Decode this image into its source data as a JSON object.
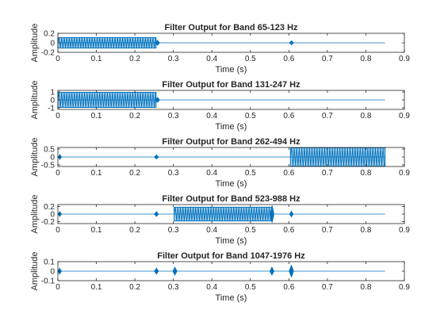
{
  "colors": {
    "series": "#0072BD",
    "axes": "#262626",
    "background": "#ffffff"
  },
  "chart_data": [
    {
      "type": "line",
      "title": "Filter Output for Band 65-123 Hz",
      "xlabel": "Time (s)",
      "ylabel": "Amplitude",
      "xlim": [
        0,
        0.9
      ],
      "ylim": [
        -0.2,
        0.2
      ],
      "xticks": [
        0,
        0.1,
        0.2,
        0.3,
        0.4,
        0.5,
        0.6,
        0.7,
        0.8,
        0.9
      ],
      "xtick_labels": [
        "0",
        "0.1",
        "0.2",
        "0.3",
        "0.4",
        "0.5",
        "0.6",
        "0.7",
        "0.8",
        "0.9"
      ],
      "yticks": [
        -0.2,
        0,
        0.2
      ],
      "ytick_labels": [
        "-0.2",
        "0",
        "0.2"
      ],
      "signal_end": 0.85,
      "segments": [
        {
          "x": [
            0.0,
            0.255
          ],
          "amplitude": 0.11
        },
        {
          "x": [
            0.255,
            0.262
          ],
          "amplitude": 0.05
        },
        {
          "x": [
            0.604,
            0.61
          ],
          "amplitude": 0.04
        }
      ]
    },
    {
      "type": "line",
      "title": "Filter Output for Band 131-247 Hz",
      "xlabel": "Time (s)",
      "ylabel": "Amplitude",
      "xlim": [
        0,
        0.9
      ],
      "ylim": [
        -1.2,
        1.2
      ],
      "xticks": [
        0,
        0.1,
        0.2,
        0.3,
        0.4,
        0.5,
        0.6,
        0.7,
        0.8,
        0.9
      ],
      "xtick_labels": [
        "0",
        "0.1",
        "0.2",
        "0.3",
        "0.4",
        "0.5",
        "0.6",
        "0.7",
        "0.8",
        "0.9"
      ],
      "yticks": [
        -1,
        0,
        1
      ],
      "ytick_labels": [
        "-1",
        "0",
        "1"
      ],
      "signal_end": 0.85,
      "segments": [
        {
          "x": [
            0.0,
            0.255
          ],
          "amplitude": 0.95
        },
        {
          "x": [
            0.255,
            0.262
          ],
          "amplitude": 0.3
        }
      ]
    },
    {
      "type": "line",
      "title": "Filter Output for Band 262-494 Hz",
      "xlabel": "Time (s)",
      "ylabel": "Amplitude",
      "xlim": [
        0,
        0.9
      ],
      "ylim": [
        -0.6,
        0.6
      ],
      "xticks": [
        0,
        0.1,
        0.2,
        0.3,
        0.4,
        0.5,
        0.6,
        0.7,
        0.8,
        0.9
      ],
      "xtick_labels": [
        "0",
        "0.1",
        "0.2",
        "0.3",
        "0.4",
        "0.5",
        "0.6",
        "0.7",
        "0.8",
        "0.9"
      ],
      "yticks": [
        -0.5,
        0,
        0.5
      ],
      "ytick_labels": [
        "-0.5",
        "0",
        "0.5"
      ],
      "signal_end": 0.85,
      "segments": [
        {
          "x": [
            0.003,
            0.007
          ],
          "amplitude": 0.15
        },
        {
          "x": [
            0.253,
            0.259
          ],
          "amplitude": 0.12
        },
        {
          "x": [
            0.604,
            0.85
          ],
          "amplitude": 0.58
        }
      ]
    },
    {
      "type": "line",
      "title": "Filter Output for Band 523-988 Hz",
      "xlabel": "Time (s)",
      "ylabel": "Amplitude",
      "xlim": [
        0,
        0.9
      ],
      "ylim": [
        -0.25,
        0.25
      ],
      "xticks": [
        0,
        0.1,
        0.2,
        0.3,
        0.4,
        0.5,
        0.6,
        0.7,
        0.8,
        0.9
      ],
      "xtick_labels": [
        "0",
        "0.1",
        "0.2",
        "0.3",
        "0.4",
        "0.5",
        "0.6",
        "0.7",
        "0.8",
        "0.9"
      ],
      "yticks": [
        -0.2,
        0,
        0.2
      ],
      "ytick_labels": [
        "-0.2",
        "0",
        "0.2"
      ],
      "signal_end": 0.85,
      "segments": [
        {
          "x": [
            0.003,
            0.007
          ],
          "amplitude": 0.06
        },
        {
          "x": [
            0.253,
            0.259
          ],
          "amplitude": 0.06
        },
        {
          "x": [
            0.302,
            0.556
          ],
          "amplitude": 0.18
        },
        {
          "x": [
            0.554,
            0.559
          ],
          "amplitude": 0.22
        },
        {
          "x": [
            0.604,
            0.609
          ],
          "amplitude": 0.07
        }
      ]
    },
    {
      "type": "line",
      "title": "Filter Output for Band 1047-1976 Hz",
      "xlabel": "Time (s)",
      "ylabel": "Amplitude",
      "xlim": [
        0,
        0.9
      ],
      "ylim": [
        -0.1,
        0.1
      ],
      "xticks": [
        0,
        0.1,
        0.2,
        0.3,
        0.4,
        0.5,
        0.6,
        0.7,
        0.8,
        0.9
      ],
      "xtick_labels": [
        "0",
        "0.1",
        "0.2",
        "0.3",
        "0.4",
        "0.5",
        "0.6",
        "0.7",
        "0.8",
        "0.9"
      ],
      "yticks": [
        -0.1,
        0,
        0.1
      ],
      "ytick_labels": [
        "-0.1",
        "0",
        "0.1"
      ],
      "signal_end": 0.85,
      "segments": [
        {
          "x": [
            0.002,
            0.007
          ],
          "amplitude": 0.03
        },
        {
          "x": [
            0.253,
            0.259
          ],
          "amplitude": 0.03
        },
        {
          "x": [
            0.301,
            0.307
          ],
          "amplitude": 0.04
        },
        {
          "x": [
            0.553,
            0.559
          ],
          "amplitude": 0.04
        },
        {
          "x": [
            0.603,
            0.61
          ],
          "amplitude": 0.06
        }
      ]
    }
  ]
}
